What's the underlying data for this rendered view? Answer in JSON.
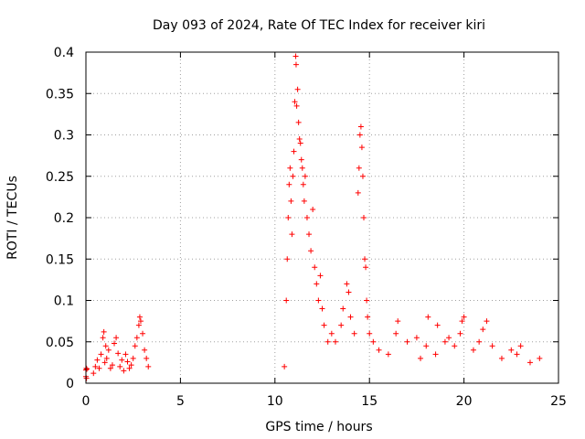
{
  "chart_data": {
    "type": "scatter",
    "title": "Day 093 of 2024, Rate Of TEC Index for receiver kiri",
    "xlabel": "GPS time / hours",
    "ylabel": "ROTI / TECUs",
    "xlim": [
      0,
      25
    ],
    "ylim": [
      0,
      0.4
    ],
    "xticks": [
      0,
      5,
      10,
      15,
      20,
      25
    ],
    "yticks": [
      0,
      0.05,
      0.1,
      0.15,
      0.2,
      0.25,
      0.3,
      0.35,
      0.4
    ],
    "xtick_labels": [
      "0",
      "5",
      "10",
      "15",
      "20",
      "25"
    ],
    "ytick_labels": [
      "0",
      "0.05",
      "0.1",
      "0.15",
      "0.2",
      "0.25",
      "0.3",
      "0.35",
      "0.4"
    ],
    "grid": true,
    "marker": "+",
    "color": "#ff0000",
    "series": [
      {
        "name": "ROTI",
        "points": [
          [
            0.0,
            0.016
          ],
          [
            0.0,
            0.008
          ],
          [
            0.02,
            0.018
          ],
          [
            0.03,
            0.006
          ],
          [
            0.05,
            0.017
          ],
          [
            0.4,
            0.012
          ],
          [
            0.5,
            0.02
          ],
          [
            0.6,
            0.028
          ],
          [
            0.7,
            0.018
          ],
          [
            0.8,
            0.035
          ],
          [
            0.9,
            0.055
          ],
          [
            0.95,
            0.062
          ],
          [
            1.0,
            0.025
          ],
          [
            1.05,
            0.045
          ],
          [
            1.1,
            0.03
          ],
          [
            1.2,
            0.04
          ],
          [
            1.3,
            0.018
          ],
          [
            1.4,
            0.022
          ],
          [
            1.5,
            0.048
          ],
          [
            1.6,
            0.055
          ],
          [
            1.7,
            0.036
          ],
          [
            1.8,
            0.02
          ],
          [
            1.9,
            0.028
          ],
          [
            2.0,
            0.015
          ],
          [
            2.1,
            0.035
          ],
          [
            2.2,
            0.026
          ],
          [
            2.3,
            0.018
          ],
          [
            2.4,
            0.022
          ],
          [
            2.5,
            0.03
          ],
          [
            2.6,
            0.045
          ],
          [
            2.7,
            0.055
          ],
          [
            2.8,
            0.07
          ],
          [
            2.85,
            0.08
          ],
          [
            2.9,
            0.075
          ],
          [
            3.0,
            0.06
          ],
          [
            3.1,
            0.04
          ],
          [
            3.2,
            0.03
          ],
          [
            3.3,
            0.02
          ],
          [
            10.5,
            0.02
          ],
          [
            10.6,
            0.1
          ],
          [
            10.65,
            0.15
          ],
          [
            10.7,
            0.2
          ],
          [
            10.75,
            0.24
          ],
          [
            10.8,
            0.26
          ],
          [
            10.85,
            0.22
          ],
          [
            10.9,
            0.18
          ],
          [
            10.95,
            0.25
          ],
          [
            11.0,
            0.28
          ],
          [
            11.05,
            0.34
          ],
          [
            11.1,
            0.395
          ],
          [
            11.12,
            0.385
          ],
          [
            11.15,
            0.335
          ],
          [
            11.2,
            0.355
          ],
          [
            11.25,
            0.315
          ],
          [
            11.3,
            0.295
          ],
          [
            11.35,
            0.29
          ],
          [
            11.4,
            0.27
          ],
          [
            11.45,
            0.26
          ],
          [
            11.5,
            0.24
          ],
          [
            11.55,
            0.22
          ],
          [
            11.6,
            0.25
          ],
          [
            11.7,
            0.2
          ],
          [
            11.8,
            0.18
          ],
          [
            11.9,
            0.16
          ],
          [
            12.0,
            0.21
          ],
          [
            12.1,
            0.14
          ],
          [
            12.2,
            0.12
          ],
          [
            12.3,
            0.1
          ],
          [
            12.4,
            0.13
          ],
          [
            12.5,
            0.09
          ],
          [
            12.6,
            0.07
          ],
          [
            12.8,
            0.05
          ],
          [
            13.0,
            0.06
          ],
          [
            13.2,
            0.05
          ],
          [
            13.5,
            0.07
          ],
          [
            13.6,
            0.09
          ],
          [
            13.8,
            0.12
          ],
          [
            13.9,
            0.11
          ],
          [
            14.0,
            0.08
          ],
          [
            14.2,
            0.06
          ],
          [
            14.4,
            0.23
          ],
          [
            14.45,
            0.26
          ],
          [
            14.5,
            0.3
          ],
          [
            14.55,
            0.31
          ],
          [
            14.6,
            0.285
          ],
          [
            14.65,
            0.25
          ],
          [
            14.7,
            0.2
          ],
          [
            14.75,
            0.15
          ],
          [
            14.8,
            0.14
          ],
          [
            14.85,
            0.1
          ],
          [
            14.9,
            0.08
          ],
          [
            15.0,
            0.06
          ],
          [
            15.2,
            0.05
          ],
          [
            15.5,
            0.04
          ],
          [
            16.0,
            0.035
          ],
          [
            16.4,
            0.06
          ],
          [
            16.5,
            0.075
          ],
          [
            17.0,
            0.05
          ],
          [
            17.5,
            0.055
          ],
          [
            17.7,
            0.03
          ],
          [
            18.0,
            0.045
          ],
          [
            18.1,
            0.08
          ],
          [
            18.5,
            0.035
          ],
          [
            18.6,
            0.07
          ],
          [
            19.0,
            0.05
          ],
          [
            19.2,
            0.055
          ],
          [
            19.5,
            0.045
          ],
          [
            19.8,
            0.06
          ],
          [
            19.9,
            0.075
          ],
          [
            20.0,
            0.08
          ],
          [
            20.5,
            0.04
          ],
          [
            20.8,
            0.05
          ],
          [
            21.0,
            0.065
          ],
          [
            21.2,
            0.075
          ],
          [
            21.5,
            0.045
          ],
          [
            22.0,
            0.03
          ],
          [
            22.5,
            0.04
          ],
          [
            22.8,
            0.035
          ],
          [
            23.0,
            0.045
          ],
          [
            23.5,
            0.025
          ],
          [
            24.0,
            0.03
          ]
        ]
      }
    ]
  }
}
